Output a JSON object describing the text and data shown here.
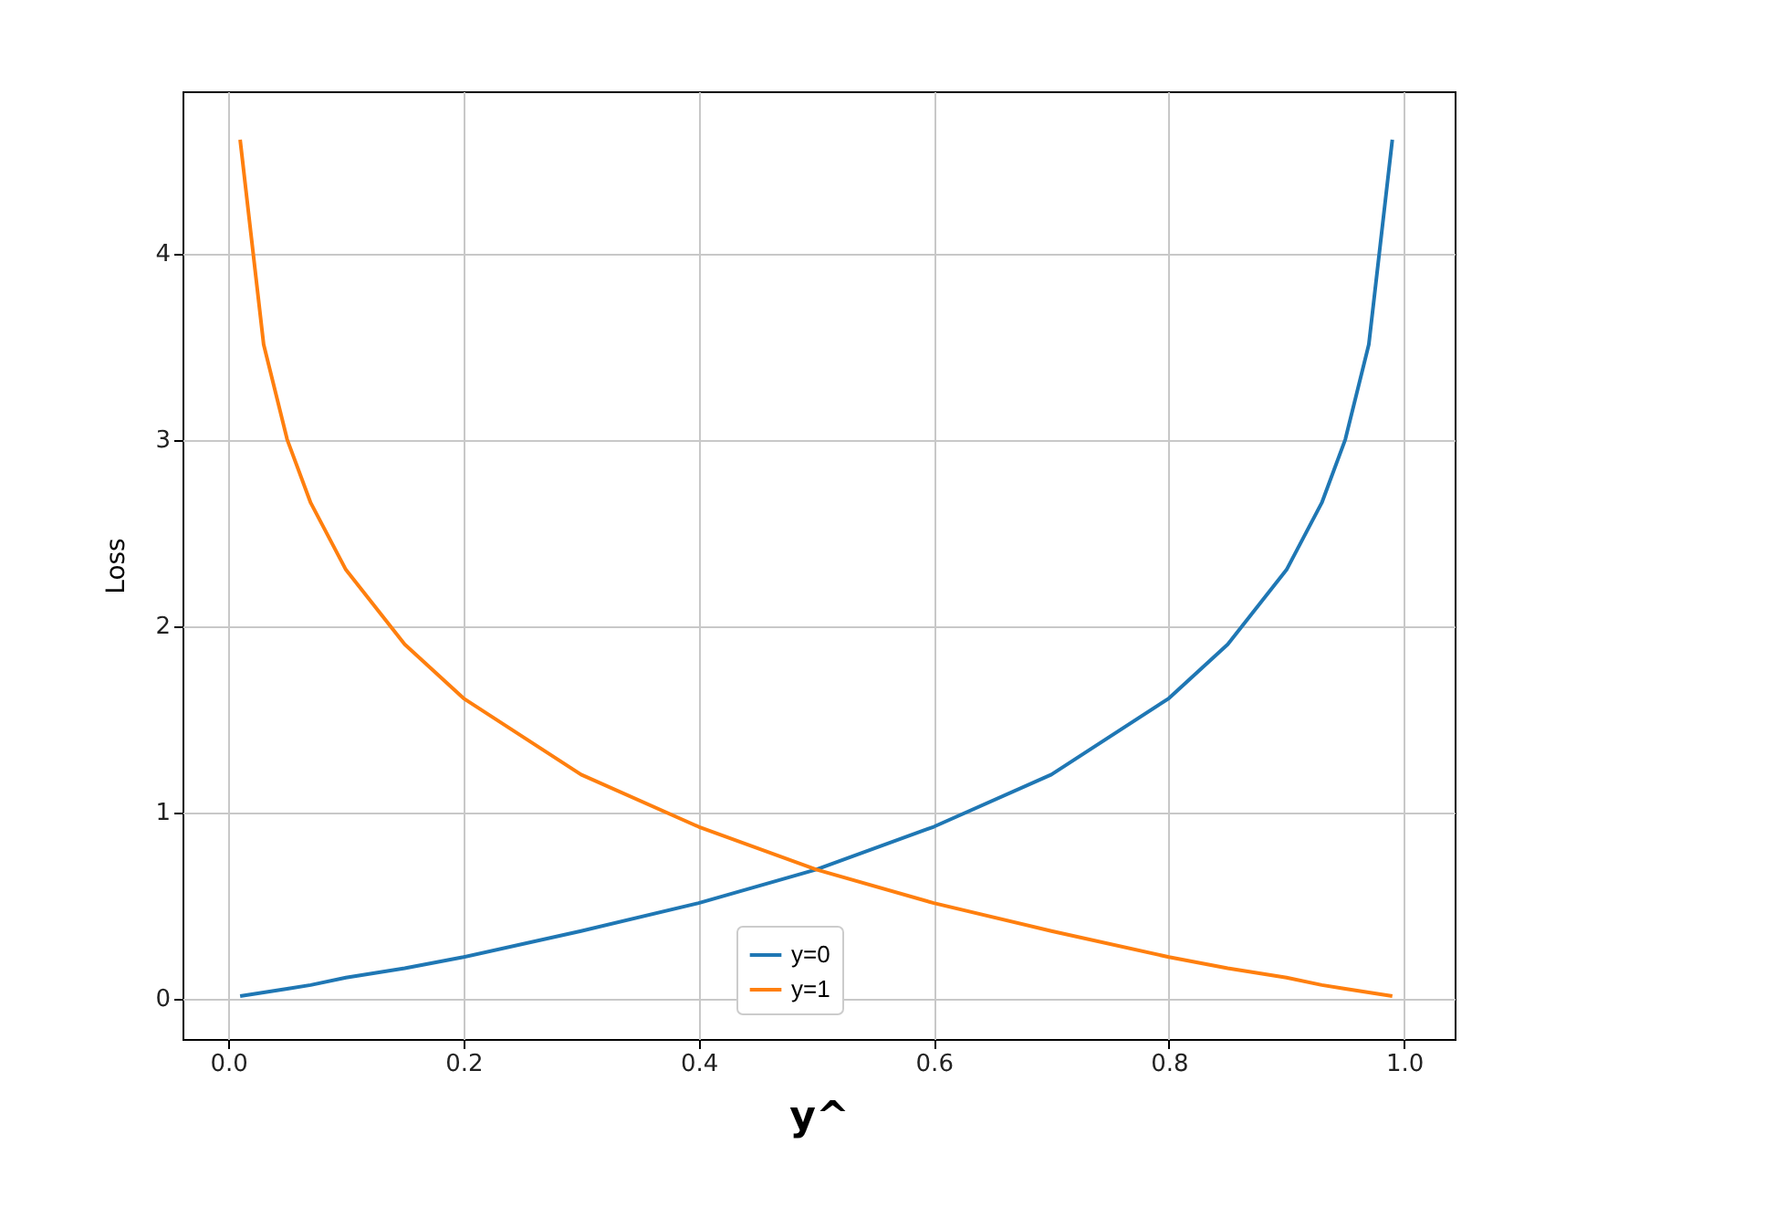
{
  "chart_data": {
    "type": "line",
    "xlabel": "y^",
    "ylabel": "Loss",
    "xlim": [
      -0.039,
      1.043
    ],
    "ylim": [
      -0.22,
      4.87
    ],
    "xticks": [
      {
        "value": 0,
        "label": "0.0"
      },
      0.2,
      0.4,
      0.6,
      0.8,
      {
        "value": 1,
        "label": "1.0"
      }
    ],
    "yticks": [
      0,
      1,
      2,
      3,
      4
    ],
    "grid": true,
    "legend": "bottom",
    "marker": "none",
    "line_style": "solid",
    "series": [
      {
        "name": "y=0",
        "color": "#1f77b4",
        "x": [
          0.01,
          0.03,
          0.05,
          0.07,
          0.1,
          0.15,
          0.2,
          0.3,
          0.4,
          0.5,
          0.6,
          0.7,
          0.8,
          0.85,
          0.9,
          0.93,
          0.95,
          0.97,
          0.99
        ],
        "values": [
          0.01,
          0.03,
          0.05,
          0.07,
          0.11,
          0.16,
          0.22,
          0.36,
          0.51,
          0.69,
          0.92,
          1.2,
          1.61,
          1.9,
          2.3,
          2.66,
          3.0,
          3.51,
          4.61
        ]
      },
      {
        "name": "y=1",
        "color": "#ff7f0e",
        "x": [
          0.01,
          0.03,
          0.05,
          0.07,
          0.1,
          0.15,
          0.2,
          0.3,
          0.4,
          0.5,
          0.6,
          0.7,
          0.8,
          0.85,
          0.9,
          0.93,
          0.95,
          0.97,
          0.99
        ],
        "values": [
          4.61,
          3.51,
          3.0,
          2.66,
          2.3,
          1.9,
          1.61,
          1.2,
          0.92,
          0.69,
          0.51,
          0.36,
          0.22,
          0.16,
          0.11,
          0.07,
          0.05,
          0.03,
          0.01
        ]
      }
    ]
  }
}
